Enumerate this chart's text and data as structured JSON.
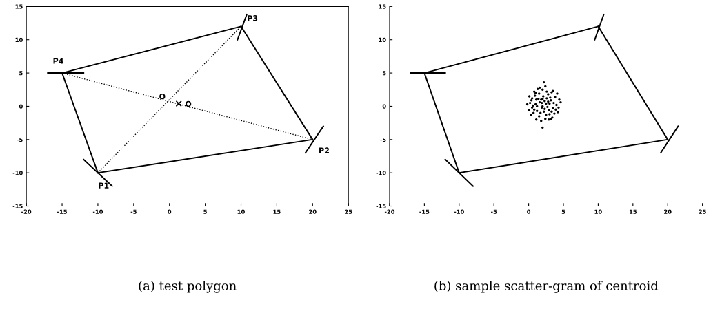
{
  "chart_data": [
    {
      "type": "line",
      "title": "(a) test polygon",
      "xlim": [
        -20,
        25
      ],
      "ylim": [
        -15,
        15
      ],
      "xticks": [
        -20,
        -15,
        -10,
        -5,
        0,
        5,
        10,
        15,
        20,
        25
      ],
      "yticks": [
        -15,
        -10,
        -5,
        0,
        5,
        10,
        15
      ],
      "grid": false,
      "series": [
        {
          "color": "#000000",
          "line_style": "solid",
          "x": [
            -10,
            20
          ],
          "values": [
            -10,
            -5
          ]
        },
        {
          "color": "#000000",
          "line_style": "solid",
          "x": [
            10,
            20
          ],
          "values": [
            12,
            -5
          ]
        },
        {
          "color": "#000000",
          "line_style": "solid",
          "x": [
            -15,
            10
          ],
          "values": [
            5,
            12
          ]
        },
        {
          "color": "#000000",
          "line_style": "solid",
          "x": [
            -15,
            -10
          ],
          "values": [
            5,
            -10
          ]
        },
        {
          "color": "#000000",
          "line_style": "solid",
          "x": [
            -12,
            -8
          ],
          "values": [
            -8,
            -12
          ]
        },
        {
          "color": "#000000",
          "line_style": "solid",
          "x": [
            19,
            21.5
          ],
          "values": [
            -7,
            -3
          ]
        },
        {
          "color": "#000000",
          "line_style": "solid",
          "x": [
            9.5,
            10.8
          ],
          "values": [
            10,
            13.8
          ]
        },
        {
          "color": "#000000",
          "line_style": "solid",
          "x": [
            -17,
            -12
          ],
          "values": [
            5,
            5
          ]
        },
        {
          "color": "#000000",
          "line_style": "dotted",
          "x": [
            -10,
            10
          ],
          "values": [
            -10,
            12
          ]
        },
        {
          "color": "#000000",
          "line_style": "dotted",
          "x": [
            -15,
            20
          ],
          "values": [
            5,
            -5
          ]
        },
        {
          "type": "scatter",
          "color": "#000000",
          "marker": "cross",
          "x": [
            1.3
          ],
          "values": [
            0.4
          ]
        }
      ],
      "annotations": [
        {
          "text": "P1",
          "x": -10,
          "y": -10
        },
        {
          "text": "P2",
          "x": 20,
          "y": -5
        },
        {
          "text": "P3",
          "x": 10,
          "y": 12
        },
        {
          "text": "P4",
          "x": -15,
          "y": 5
        },
        {
          "text": "O",
          "x": -0.2,
          "y": 0.8
        },
        {
          "text": "Q",
          "x": 1.3,
          "y": 0.4
        }
      ]
    },
    {
      "type": "line",
      "title": "(b) sample scatter-gram of centroid",
      "xlim": [
        -20,
        25
      ],
      "ylim": [
        -15,
        15
      ],
      "xticks": [
        -20,
        -15,
        -10,
        -5,
        0,
        5,
        10,
        15,
        20,
        25
      ],
      "yticks": [
        -15,
        -10,
        -5,
        0,
        5,
        10,
        15
      ],
      "grid": false,
      "series": [
        {
          "color": "#000000",
          "line_style": "solid",
          "x": [
            -10,
            20
          ],
          "values": [
            -10,
            -5
          ]
        },
        {
          "color": "#000000",
          "line_style": "solid",
          "x": [
            10,
            20
          ],
          "values": [
            12,
            -5
          ]
        },
        {
          "color": "#000000",
          "line_style": "solid",
          "x": [
            -15,
            10
          ],
          "values": [
            5,
            12
          ]
        },
        {
          "color": "#000000",
          "line_style": "solid",
          "x": [
            -15,
            -10
          ],
          "values": [
            5,
            -10
          ]
        },
        {
          "color": "#000000",
          "line_style": "solid",
          "x": [
            -12,
            -8
          ],
          "values": [
            -8,
            -12
          ]
        },
        {
          "color": "#000000",
          "line_style": "solid",
          "x": [
            19,
            21.5
          ],
          "values": [
            -7,
            -3
          ]
        },
        {
          "color": "#000000",
          "line_style": "solid",
          "x": [
            9.5,
            10.8
          ],
          "values": [
            10,
            13.8
          ]
        },
        {
          "color": "#000000",
          "line_style": "solid",
          "x": [
            -17,
            -12
          ],
          "values": [
            5,
            5
          ]
        },
        {
          "type": "scatter",
          "color": "#000000",
          "marker": "circle",
          "x": [
            0.2,
            0.5,
            0.8,
            1.0,
            1.2,
            1.5,
            1.8,
            2.0,
            2.2,
            2.5,
            2.8,
            3.0,
            3.2,
            3.5,
            3.8,
            4.0,
            4.2,
            4.4,
            0.0,
            0.3,
            0.6,
            0.9,
            1.1,
            1.3,
            1.6,
            1.9,
            2.1,
            2.4,
            2.6,
            2.9,
            3.1,
            3.4,
            3.6,
            3.9,
            4.1,
            0.4,
            0.7,
            1.0,
            1.4,
            1.7,
            2.0,
            2.3,
            2.7,
            3.0,
            3.3,
            3.7,
            1.5,
            2.5,
            2.0,
            1.2,
            2.8,
            3.3,
            0.8,
            1.8,
            2.4,
            4.6,
            -0.2,
            2.9,
            1.6,
            3.5,
            2.2,
            2.0,
            0.1,
            4.3,
            1.9,
            2.6,
            1.1,
            3.2,
            0.5,
            2.3
          ],
          "values": [
            0.5,
            1.2,
            -0.5,
            2.0,
            0.0,
            -1.5,
            1.0,
            2.5,
            -0.8,
            0.4,
            1.8,
            -1.2,
            0.9,
            -0.3,
            1.4,
            0.2,
            -0.9,
            1.0,
            -0.6,
            -1.3,
            0.1,
            1.6,
            -2.0,
            2.6,
            0.6,
            -0.2,
            1.5,
            -1.9,
            2.2,
            -0.6,
            1.3,
            -1.7,
            0.5,
            -0.5,
            1.9,
            0.9,
            -1.0,
            0.3,
            1.1,
            -1.0,
            0.0,
            0.8,
            -0.1,
            0.4,
            2.1,
            -1.1,
            1.9,
            -1.3,
            1.1,
            -0.7,
            0.7,
            -0.8,
            2.2,
            -2.2,
            3.0,
            0.6,
            0.3,
            -2.0,
            2.8,
            2.3,
            3.6,
            -3.2,
            1.5,
            -0.2,
            0.5,
            1.2,
            1.0,
            -1.9,
            -0.2,
            -0.4
          ]
        }
      ]
    }
  ]
}
